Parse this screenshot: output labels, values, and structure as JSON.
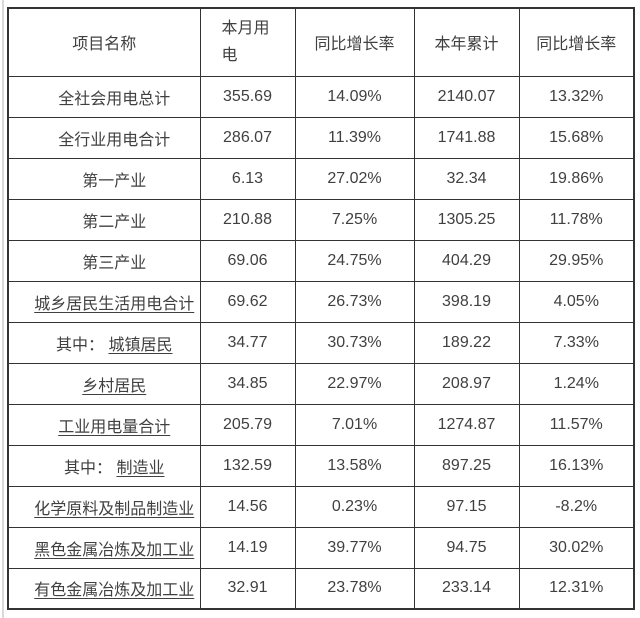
{
  "colors": {
    "border": "#333333",
    "text": "#404040",
    "left_rule": "#d9d9d9",
    "background": "#ffffff"
  },
  "table": {
    "headers": [
      "项目名称",
      "本月用\n电",
      "同比增长率",
      "本年累计",
      "同比增长率"
    ],
    "rows": [
      {
        "prefix": "",
        "name": "全社会用电总计",
        "underlined": false,
        "values": [
          "355.69",
          "14.09%",
          "2140.07",
          "13.32%"
        ]
      },
      {
        "prefix": "",
        "name": "全行业用电合计",
        "underlined": false,
        "values": [
          "286.07",
          "11.39%",
          "1741.88",
          "15.68%"
        ]
      },
      {
        "prefix": "",
        "name": "第一产业",
        "underlined": false,
        "values": [
          "6.13",
          "27.02%",
          "32.34",
          "19.86%"
        ]
      },
      {
        "prefix": "",
        "name": "第二产业",
        "underlined": false,
        "values": [
          "210.88",
          "7.25%",
          "1305.25",
          "11.78%"
        ]
      },
      {
        "prefix": "",
        "name": "第三产业",
        "underlined": false,
        "values": [
          "69.06",
          "24.75%",
          "404.29",
          "29.95%"
        ]
      },
      {
        "prefix": "",
        "name": "城乡居民生活用电合计",
        "underlined": true,
        "values": [
          "69.62",
          "26.73%",
          "398.19",
          "4.05%"
        ]
      },
      {
        "prefix": "其中： ",
        "name": "城镇居民",
        "underlined": true,
        "values": [
          "34.77",
          "30.73%",
          "189.22",
          "7.33%"
        ]
      },
      {
        "prefix": "",
        "name": "乡村居民",
        "underlined": true,
        "values": [
          "34.85",
          "22.97%",
          "208.97",
          "1.24%"
        ]
      },
      {
        "prefix": "",
        "name": "工业用电量合计",
        "underlined": true,
        "values": [
          "205.79",
          "7.01%",
          "1274.87",
          "11.57%"
        ]
      },
      {
        "prefix": "其中： ",
        "name": "制造业",
        "underlined": true,
        "values": [
          "132.59",
          "13.58%",
          "897.25",
          "16.13%"
        ]
      },
      {
        "prefix": "",
        "name": "化学原料及制品制造业",
        "underlined": true,
        "values": [
          "14.56",
          "0.23%",
          "97.15",
          "-8.2%"
        ]
      },
      {
        "prefix": "",
        "name": "黑色金属冶炼及加工业",
        "underlined": true,
        "values": [
          "14.19",
          "39.77%",
          "94.75",
          "30.02%"
        ]
      },
      {
        "prefix": "",
        "name": "有色金属冶炼及加工业",
        "underlined": true,
        "values": [
          "32.91",
          "23.78%",
          "233.14",
          "12.31%"
        ]
      }
    ]
  }
}
